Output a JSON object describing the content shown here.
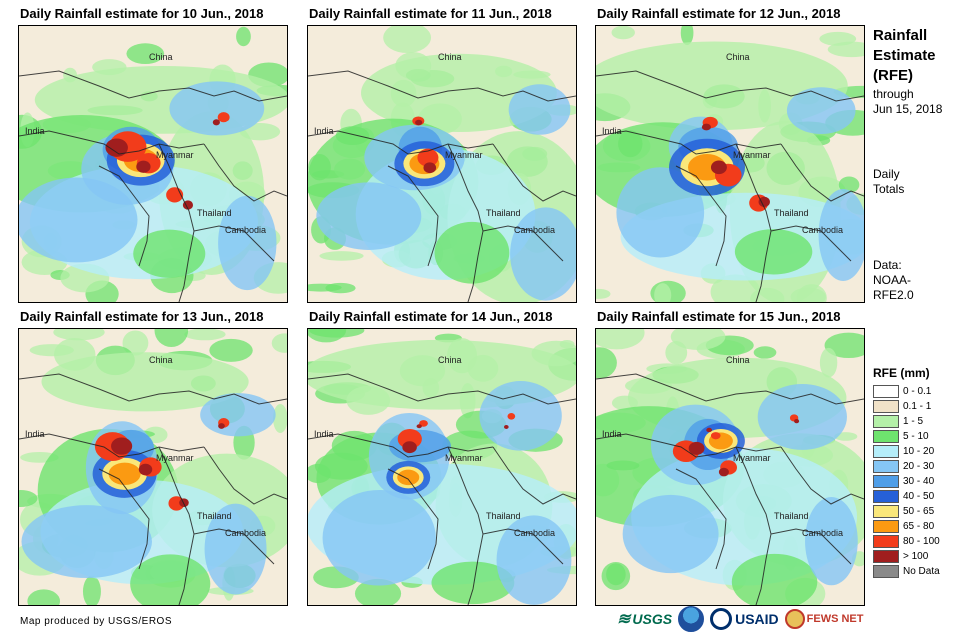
{
  "panels": [
    {
      "title": "Daily Rainfall estimate for 10 Jun., 2018",
      "intensity": 0.85
    },
    {
      "title": "Daily Rainfall estimate for 11 Jun., 2018",
      "intensity": 0.75
    },
    {
      "title": "Daily Rainfall estimate for 12 Jun., 2018",
      "intensity": 0.95
    },
    {
      "title": "Daily Rainfall estimate for 13 Jun., 2018",
      "intensity": 0.8
    },
    {
      "title": "Daily Rainfall estimate for 14 Jun., 2018",
      "intensity": 0.55
    },
    {
      "title": "Daily Rainfall estimate for 15 Jun., 2018",
      "intensity": 0.6
    }
  ],
  "map_labels": {
    "china": "China",
    "india": "India",
    "myanmar": "Myanmar",
    "thailand": "Thailand",
    "cambodia": "Cambodia"
  },
  "side": {
    "title_lines": [
      "Rainfall",
      "Estimate",
      "(RFE)"
    ],
    "through_lines": [
      "through",
      "Jun 15, 2018"
    ],
    "daily_lines": [
      "Daily",
      "Totals"
    ],
    "data_lines": [
      "Data:",
      "NOAA-",
      "RFE2.0"
    ]
  },
  "legend": {
    "title": "RFE (mm)",
    "items": [
      {
        "label": "0 - 0.1",
        "color": "#ffffff"
      },
      {
        "label": "0.1 - 1",
        "color": "#f1e2c8"
      },
      {
        "label": "1 - 5",
        "color": "#b4f0a8"
      },
      {
        "label": "5 - 10",
        "color": "#6ee36e"
      },
      {
        "label": "10 - 20",
        "color": "#b5eefa"
      },
      {
        "label": "20 - 30",
        "color": "#85c6f5"
      },
      {
        "label": "30 - 40",
        "color": "#4f9ee8"
      },
      {
        "label": "40 - 50",
        "color": "#2660d8"
      },
      {
        "label": "50 - 65",
        "color": "#fae77a"
      },
      {
        "label": "65 - 80",
        "color": "#fb9a12"
      },
      {
        "label": "80 - 100",
        "color": "#f23c1b"
      },
      {
        "label": "> 100",
        "color": "#a01e1e"
      },
      {
        "label": "No Data",
        "color": "#8a8a8a"
      }
    ]
  },
  "credit": "Map produced by USGS/EROS",
  "logos": {
    "usgs": "USGS",
    "usaid": "USAID",
    "fews": "FEWS NET"
  }
}
